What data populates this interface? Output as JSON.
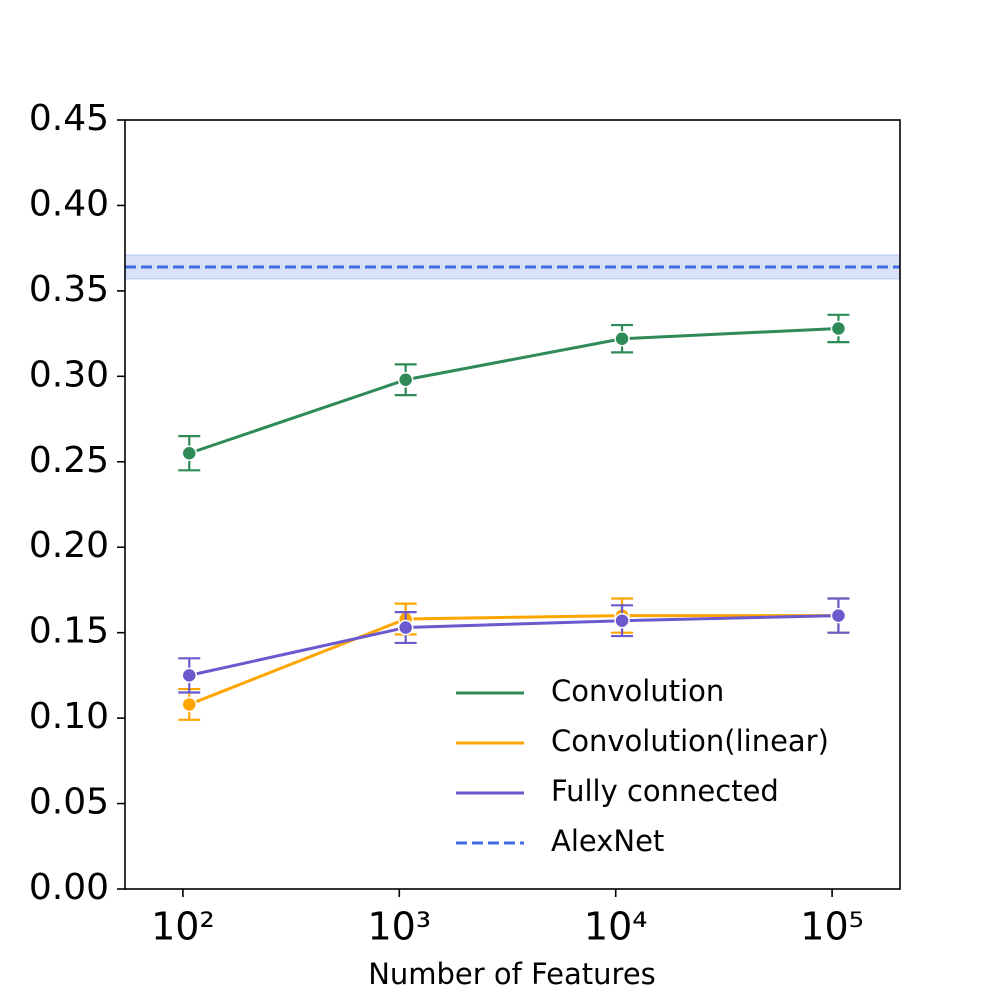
{
  "chart_data": {
    "type": "line",
    "xlabel": "Number of Features",
    "x": [
      107,
      1070,
      10700,
      107000
    ],
    "xscale": "log",
    "xlim": [
      54,
      206000
    ],
    "xticks": [
      {
        "value": 100,
        "label": "10²"
      },
      {
        "value": 1000,
        "label": "10³"
      },
      {
        "value": 10000,
        "label": "10⁴"
      },
      {
        "value": 100000,
        "label": "10⁵"
      }
    ],
    "ylim": [
      0,
      0.45
    ],
    "yticks": [
      {
        "value": 0,
        "label": "0.00"
      },
      0.05,
      {
        "value": 0.1,
        "label": "0.10"
      },
      0.15,
      {
        "value": 0.2,
        "label": "0.20"
      },
      0.25,
      {
        "value": 0.3,
        "label": "0.30"
      },
      0.35,
      {
        "value": 0.4,
        "label": "0.40"
      },
      0.45
    ],
    "series": [
      {
        "name": "Convolution",
        "color": "#2e8b57",
        "values": [
          0.255,
          0.298,
          0.322,
          0.328
        ],
        "errors": [
          0.01,
          0.009,
          0.008,
          0.008
        ]
      },
      {
        "name": "Convolution(linear)",
        "color": "#ffa500",
        "values": [
          0.108,
          0.158,
          0.16,
          0.16
        ],
        "errors": [
          0.009,
          0.009,
          0.01,
          0.01
        ]
      },
      {
        "name": "Fully connected",
        "color": "#6a5acd",
        "values": [
          0.125,
          0.153,
          0.157,
          0.16
        ],
        "errors": [
          0.01,
          0.009,
          0.009,
          0.01
        ]
      }
    ],
    "reference_lines": [
      {
        "name": "AlexNet",
        "value": 0.364,
        "band": 0.007,
        "color": "#4169e1",
        "style": "dashed"
      }
    ],
    "legend": "lower right"
  }
}
